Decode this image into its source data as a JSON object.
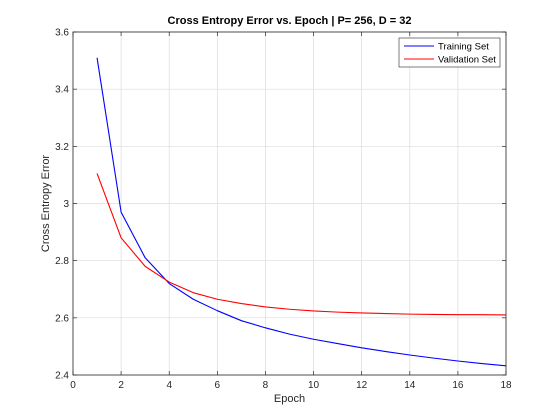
{
  "chart_data": {
    "type": "line",
    "title": "Cross Entropy Error vs. Epoch | P= 256, D = 32",
    "xlabel": "Epoch",
    "ylabel": "Cross Entropy Error",
    "xlim": [
      0,
      18
    ],
    "ylim": [
      2.4,
      3.6
    ],
    "xticks": [
      0,
      2,
      4,
      6,
      8,
      10,
      12,
      14,
      16,
      18
    ],
    "yticks": [
      2.4,
      2.6,
      2.8,
      3,
      3.2,
      3.4,
      3.6
    ],
    "grid": true,
    "legend_position": "top-right",
    "x": [
      1,
      2,
      3,
      4,
      5,
      6,
      7,
      8,
      9,
      10,
      11,
      12,
      13,
      14,
      15,
      16,
      17,
      18
    ],
    "series": [
      {
        "name": "Training Set",
        "color": "#0000ff",
        "values": [
          3.51,
          2.97,
          2.81,
          2.72,
          2.665,
          2.625,
          2.59,
          2.565,
          2.543,
          2.525,
          2.51,
          2.495,
          2.482,
          2.47,
          2.459,
          2.449,
          2.44,
          2.432
        ]
      },
      {
        "name": "Validation Set",
        "color": "#ff0000",
        "values": [
          3.105,
          2.88,
          2.78,
          2.725,
          2.688,
          2.665,
          2.65,
          2.638,
          2.63,
          2.624,
          2.62,
          2.617,
          2.615,
          2.613,
          2.612,
          2.611,
          2.611,
          2.61
        ]
      }
    ]
  }
}
